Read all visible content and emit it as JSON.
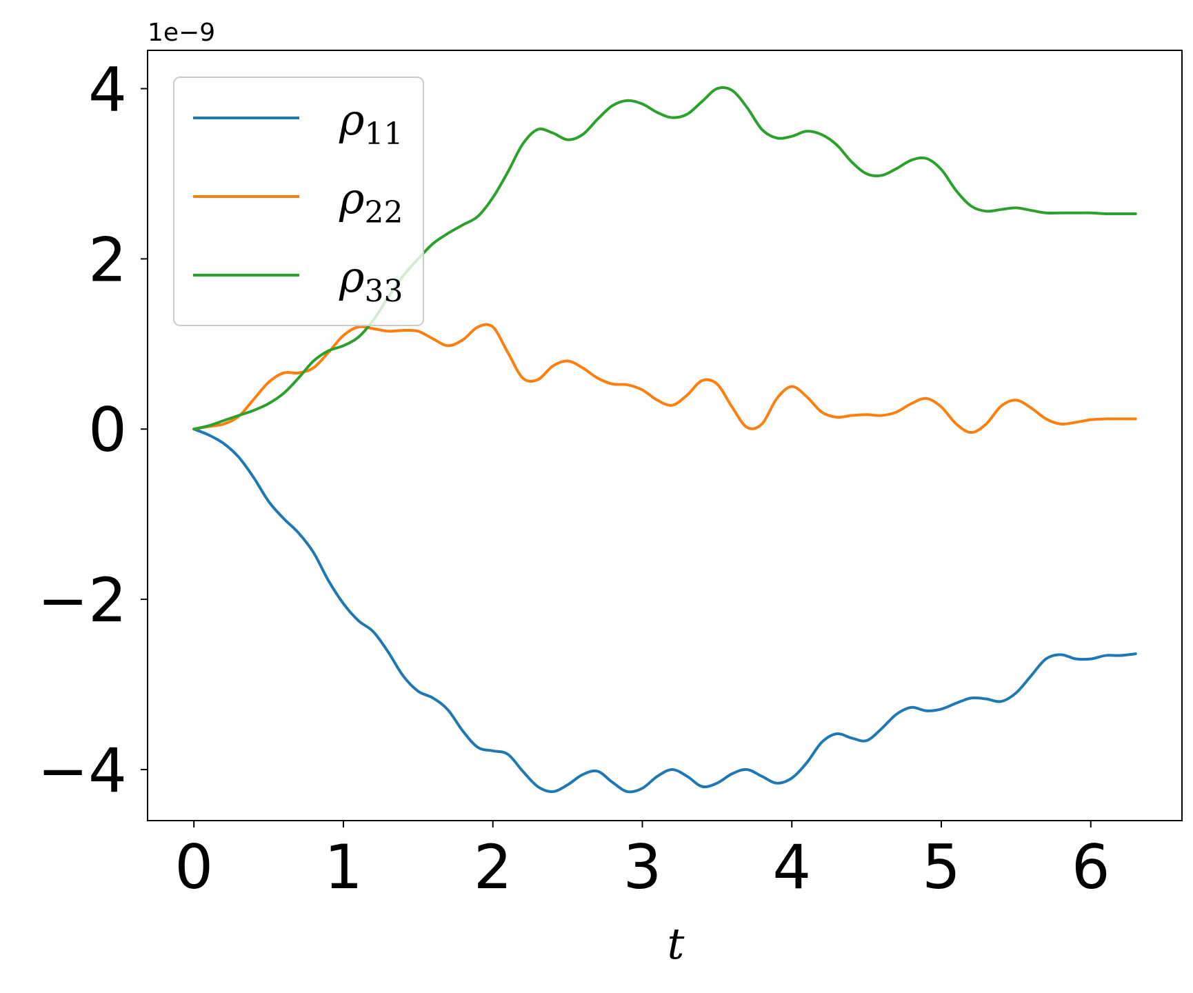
{
  "chart_data": {
    "type": "line",
    "title": "",
    "xlabel": "t",
    "ylabel": "",
    "y_offset_label": "1e−9",
    "xlim": [
      -0.31,
      6.61
    ],
    "ylim": [
      -4.6,
      4.45
    ],
    "xticks": [
      0,
      1,
      2,
      3,
      4,
      5,
      6
    ],
    "xtick_labels": [
      "0",
      "1",
      "2",
      "3",
      "4",
      "5",
      "6"
    ],
    "yticks": [
      -4,
      -2,
      0,
      2,
      4
    ],
    "ytick_labels": [
      "−4",
      "−2",
      "0",
      "2",
      "4"
    ],
    "grid": false,
    "legend_position": "upper left",
    "series": [
      {
        "name": "ρ11",
        "legend_symbol": "ρ",
        "legend_subscript": "11",
        "color": "#1f77b4",
        "x": [
          0,
          0.1,
          0.2,
          0.3,
          0.4,
          0.5,
          0.6,
          0.7,
          0.8,
          0.9,
          1.0,
          1.1,
          1.2,
          1.3,
          1.4,
          1.5,
          1.6,
          1.7,
          1.8,
          1.9,
          2.0,
          2.1,
          2.2,
          2.3,
          2.4,
          2.5,
          2.6,
          2.7,
          2.8,
          2.9,
          3.0,
          3.1,
          3.2,
          3.3,
          3.4,
          3.5,
          3.6,
          3.7,
          3.8,
          3.9,
          4.0,
          4.1,
          4.2,
          4.3,
          4.4,
          4.5,
          4.6,
          4.7,
          4.8,
          4.9,
          5.0,
          5.1,
          5.2,
          5.3,
          5.4,
          5.5,
          5.6,
          5.7,
          5.8,
          5.9,
          6.0,
          6.1,
          6.2,
          6.3
        ],
        "y": [
          0,
          -0.07,
          -0.17,
          -0.33,
          -0.57,
          -0.85,
          -1.05,
          -1.22,
          -1.45,
          -1.78,
          -2.05,
          -2.25,
          -2.38,
          -2.62,
          -2.9,
          -3.08,
          -3.16,
          -3.3,
          -3.55,
          -3.74,
          -3.78,
          -3.82,
          -4.02,
          -4.2,
          -4.26,
          -4.18,
          -4.06,
          -4.02,
          -4.15,
          -4.26,
          -4.22,
          -4.08,
          -4.0,
          -4.08,
          -4.2,
          -4.16,
          -4.05,
          -4.0,
          -4.08,
          -4.16,
          -4.1,
          -3.92,
          -3.68,
          -3.58,
          -3.63,
          -3.66,
          -3.52,
          -3.35,
          -3.27,
          -3.31,
          -3.29,
          -3.22,
          -3.16,
          -3.17,
          -3.2,
          -3.1,
          -2.9,
          -2.7,
          -2.65,
          -2.7,
          -2.7,
          -2.66,
          -2.66,
          -2.64
        ]
      },
      {
        "name": "ρ22",
        "legend_symbol": "ρ",
        "legend_subscript": "22",
        "color": "#ff7f0e",
        "x": [
          0,
          0.1,
          0.2,
          0.3,
          0.4,
          0.5,
          0.6,
          0.7,
          0.8,
          0.9,
          1.0,
          1.1,
          1.2,
          1.3,
          1.4,
          1.5,
          1.6,
          1.7,
          1.8,
          1.9,
          2.0,
          2.1,
          2.2,
          2.3,
          2.4,
          2.5,
          2.6,
          2.7,
          2.8,
          2.9,
          3.0,
          3.1,
          3.2,
          3.3,
          3.4,
          3.5,
          3.6,
          3.7,
          3.8,
          3.9,
          4.0,
          4.1,
          4.2,
          4.3,
          4.4,
          4.5,
          4.6,
          4.7,
          4.8,
          4.9,
          5.0,
          5.1,
          5.2,
          5.3,
          5.4,
          5.5,
          5.6,
          5.7,
          5.8,
          5.9,
          6.0,
          6.1,
          6.2,
          6.3
        ],
        "y": [
          0,
          0.03,
          0.06,
          0.15,
          0.35,
          0.55,
          0.66,
          0.66,
          0.72,
          0.9,
          1.1,
          1.2,
          1.18,
          1.15,
          1.16,
          1.15,
          1.06,
          0.98,
          1.05,
          1.2,
          1.2,
          0.9,
          0.6,
          0.58,
          0.74,
          0.8,
          0.72,
          0.6,
          0.53,
          0.52,
          0.46,
          0.34,
          0.28,
          0.4,
          0.57,
          0.53,
          0.26,
          0.02,
          0.06,
          0.36,
          0.5,
          0.38,
          0.2,
          0.14,
          0.16,
          0.17,
          0.16,
          0.2,
          0.3,
          0.36,
          0.26,
          0.06,
          -0.04,
          0.06,
          0.27,
          0.34,
          0.25,
          0.12,
          0.06,
          0.08,
          0.11,
          0.12,
          0.12,
          0.12
        ]
      },
      {
        "name": "ρ33",
        "legend_symbol": "ρ",
        "legend_subscript": "33",
        "color": "#2ca02c",
        "x": [
          0,
          0.1,
          0.2,
          0.3,
          0.4,
          0.5,
          0.6,
          0.7,
          0.8,
          0.9,
          1.0,
          1.1,
          1.2,
          1.3,
          1.4,
          1.5,
          1.6,
          1.7,
          1.8,
          1.9,
          2.0,
          2.1,
          2.2,
          2.3,
          2.4,
          2.5,
          2.6,
          2.7,
          2.8,
          2.9,
          3.0,
          3.1,
          3.2,
          3.3,
          3.4,
          3.5,
          3.6,
          3.7,
          3.8,
          3.9,
          4.0,
          4.1,
          4.2,
          4.3,
          4.4,
          4.5,
          4.6,
          4.7,
          4.8,
          4.9,
          5.0,
          5.1,
          5.2,
          5.3,
          5.4,
          5.5,
          5.6,
          5.7,
          5.8,
          5.9,
          6.0,
          6.1,
          6.2,
          6.3
        ],
        "y": [
          0,
          0.04,
          0.1,
          0.16,
          0.22,
          0.3,
          0.42,
          0.6,
          0.8,
          0.92,
          0.98,
          1.08,
          1.28,
          1.55,
          1.8,
          2.0,
          2.18,
          2.3,
          2.4,
          2.5,
          2.72,
          3.02,
          3.35,
          3.52,
          3.48,
          3.4,
          3.46,
          3.64,
          3.8,
          3.86,
          3.82,
          3.72,
          3.66,
          3.7,
          3.85,
          4.0,
          3.98,
          3.78,
          3.52,
          3.42,
          3.44,
          3.5,
          3.46,
          3.34,
          3.14,
          3.0,
          2.98,
          3.06,
          3.16,
          3.18,
          3.05,
          2.8,
          2.62,
          2.56,
          2.58,
          2.6,
          2.57,
          2.54,
          2.54,
          2.54,
          2.54,
          2.53,
          2.53,
          2.53
        ]
      }
    ]
  }
}
